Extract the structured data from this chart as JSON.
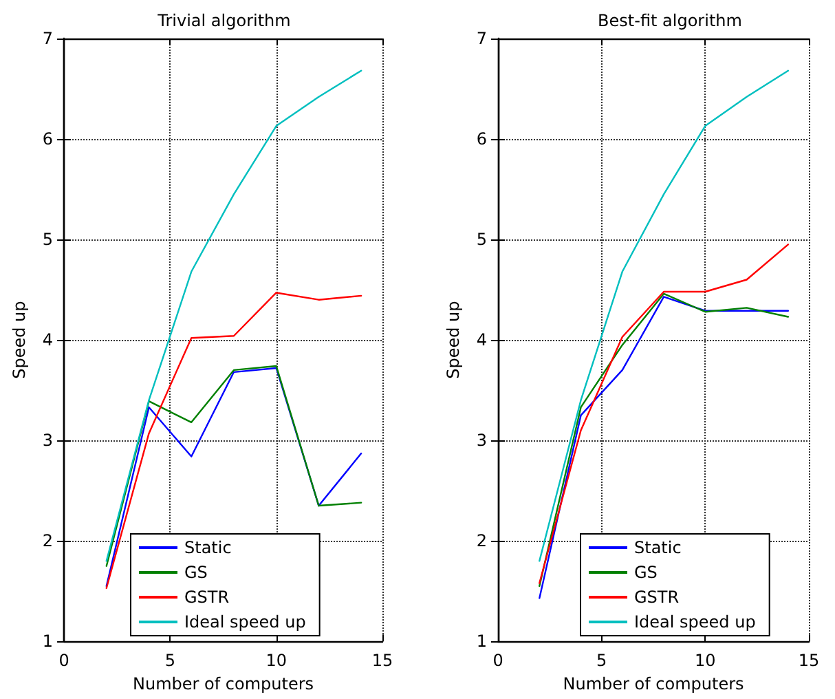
{
  "chart_data": [
    {
      "type": "line",
      "title": "Trivial algorithm",
      "xlabel": "Number of computers",
      "ylabel": "Speed up",
      "x": [
        2,
        4,
        6,
        8,
        10,
        12,
        14
      ],
      "xlim": [
        0,
        15
      ],
      "xticks": [
        0,
        5,
        10,
        15
      ],
      "ylim": [
        1,
        7
      ],
      "yticks": [
        1,
        2,
        3,
        4,
        5,
        6,
        7
      ],
      "grid": true,
      "legend": "bottom",
      "marker": "none",
      "line_style": "solid",
      "series": [
        {
          "name": "Static",
          "color": "#0000ff",
          "values": [
            1.55,
            3.33,
            2.84,
            3.68,
            3.72,
            2.35,
            2.87
          ]
        },
        {
          "name": "GS",
          "color": "#008000",
          "values": [
            1.75,
            3.39,
            3.18,
            3.7,
            3.74,
            2.35,
            2.38
          ]
        },
        {
          "name": "GSTR",
          "color": "#ff0000",
          "values": [
            1.53,
            3.07,
            4.02,
            4.04,
            4.47,
            4.4,
            4.44
          ]
        },
        {
          "name": "Ideal speed up",
          "color": "#00bfbf",
          "values": [
            1.8,
            3.4,
            4.68,
            5.45,
            6.13,
            6.42,
            6.68
          ]
        }
      ]
    },
    {
      "type": "line",
      "title": "Best-fit algorithm",
      "xlabel": "Number of computers",
      "ylabel": "Speed up",
      "x": [
        2,
        4,
        6,
        8,
        10,
        12,
        14
      ],
      "xlim": [
        0,
        15
      ],
      "xticks": [
        0,
        5,
        10,
        15
      ],
      "ylim": [
        1,
        7
      ],
      "yticks": [
        1,
        2,
        3,
        4,
        5,
        6,
        7
      ],
      "grid": true,
      "legend": "bottom",
      "marker": "none",
      "line_style": "solid",
      "series": [
        {
          "name": "Static",
          "color": "#0000ff",
          "values": [
            1.43,
            3.25,
            3.7,
            4.43,
            4.29,
            4.29,
            4.29
          ]
        },
        {
          "name": "GS",
          "color": "#008000",
          "values": [
            1.55,
            3.33,
            3.95,
            4.46,
            4.28,
            4.32,
            4.23
          ]
        },
        {
          "name": "GSTR",
          "color": "#ff0000",
          "values": [
            1.58,
            3.1,
            4.03,
            4.48,
            4.48,
            4.6,
            4.95
          ]
        },
        {
          "name": "Ideal speed up",
          "color": "#00bfbf",
          "values": [
            1.8,
            3.4,
            4.68,
            5.45,
            6.13,
            6.42,
            6.68
          ]
        }
      ]
    }
  ]
}
